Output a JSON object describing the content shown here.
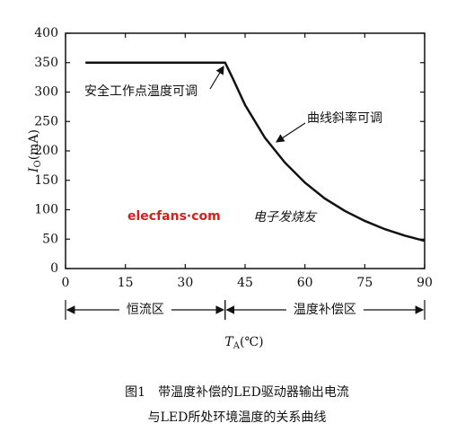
{
  "chart_data": {
    "type": "line",
    "x": [
      5,
      40,
      42,
      45,
      50,
      55,
      60,
      65,
      70,
      75,
      80,
      85,
      90
    ],
    "values": [
      350,
      350,
      322,
      278,
      222,
      180,
      146,
      119,
      98,
      81,
      67,
      56,
      47
    ],
    "color": "#111111",
    "xlim": [
      0,
      90
    ],
    "xticks": [
      0,
      15,
      30,
      45,
      60,
      75,
      90
    ],
    "ylim": [
      0,
      400
    ],
    "yticks": [
      0,
      50,
      100,
      150,
      200,
      250,
      300,
      350,
      400
    ],
    "grid": false,
    "y_label": "I",
    "y_label_sub": "O",
    "y_label_unit": "(mA)",
    "x_label": "T",
    "x_label_sub": "A",
    "x_label_unit": "(℃)",
    "annotations": [
      "安全工作点温度可调",
      "曲线斜率可调"
    ],
    "regions": [
      {
        "label": "恒流区",
        "from": 0,
        "to": 40
      },
      {
        "label": "温度补偿区",
        "from": 40,
        "to": 90
      }
    ],
    "watermark": "elecfans·com",
    "watermark_cn": "电子发烧友",
    "caption_lines": [
      "图1　带温度补偿的LED驱动器输出电流",
      "与LED所处环境温度的关系曲线"
    ]
  }
}
